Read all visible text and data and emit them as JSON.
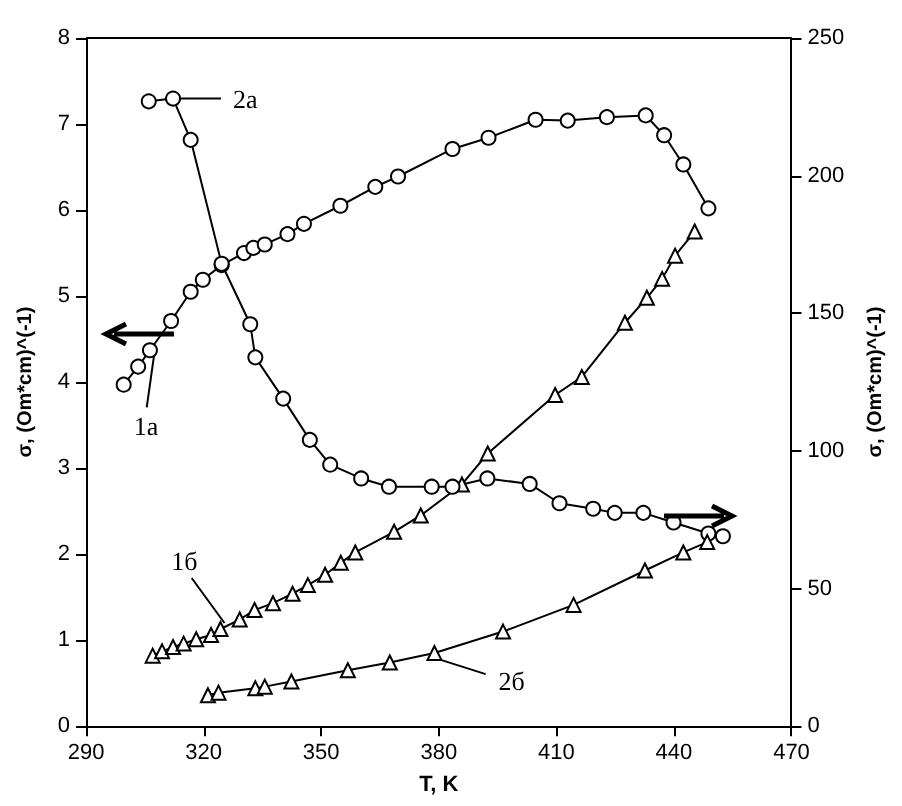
{
  "chart_data": {
    "type": "line",
    "xlabel": "T, K",
    "ylabel": "σ, (Om*cm)^(-1)",
    "y2label": "σ, (Om*cm)^(-1)",
    "xlim": [
      290,
      470
    ],
    "xticks": [
      290,
      320,
      350,
      380,
      410,
      440,
      470
    ],
    "ylim": [
      0,
      8
    ],
    "yticks": [
      0,
      1,
      2,
      3,
      4,
      5,
      6,
      7,
      8
    ],
    "y2lim": [
      0,
      250
    ],
    "y2ticks": [
      0,
      50,
      100,
      150,
      200,
      250
    ],
    "grid": false,
    "legend": "left",
    "line_style": "solid",
    "series": [
      {
        "name": "1а",
        "color": "#000000",
        "marker": "circle",
        "x": [
          299.6,
          303.3,
          306.3,
          311.7,
          316.7,
          319.8,
          324.6,
          330.3,
          332.7,
          335.6,
          341.4,
          345.6,
          354.9,
          363.8,
          369.6,
          383.5,
          392.7,
          404.7,
          412.9,
          422.9,
          432.8,
          437.5,
          442.4,
          448.8
        ],
        "values": [
          3.97,
          4.18,
          4.37,
          4.71,
          5.05,
          5.19,
          5.36,
          5.5,
          5.56,
          5.6,
          5.72,
          5.84,
          6.05,
          6.27,
          6.39,
          6.71,
          6.84,
          7.05,
          7.04,
          7.08,
          7.1,
          6.87,
          6.53,
          6.02
        ]
      },
      {
        "name": "1б",
        "color": "#000000",
        "marker": "triangle",
        "x": [
          307,
          309.4,
          312.2,
          314.9,
          318.1,
          321.9,
          324.3,
          329.2,
          333,
          337.7,
          342.7,
          346.6,
          351,
          355,
          358.7,
          368.6,
          375.4,
          385.9,
          392.5,
          409.7,
          416.5,
          427.5,
          433.1,
          437,
          440.3,
          445.3
        ],
        "values": [
          0.82,
          0.87,
          0.92,
          0.96,
          1.01,
          1.06,
          1.13,
          1.24,
          1.35,
          1.43,
          1.54,
          1.64,
          1.76,
          1.9,
          2.02,
          2.26,
          2.45,
          2.81,
          3.17,
          3.85,
          4.06,
          4.69,
          4.98,
          5.2,
          5.47,
          5.75
        ]
      },
      {
        "name": "2а",
        "color": "#000000",
        "marker": "circle",
        "axis": "y2",
        "x": [
          306,
          312.2,
          316.7,
          324.6,
          331.9,
          333.2,
          340.3,
          347.1,
          352.3,
          360.2,
          367.3,
          378.2,
          383.5,
          392.4,
          403.2,
          410.8,
          419.4,
          424.9,
          432.2,
          439.9,
          448.8,
          452.5
        ],
        "values": [
          227,
          228,
          213,
          168,
          146,
          134,
          119,
          104,
          95,
          90,
          87,
          87,
          87,
          90,
          88,
          81,
          79,
          77.5,
          77.5,
          74,
          70,
          69
        ]
      },
      {
        "name": "2б",
        "color": "#000000",
        "marker": "triangle",
        "x": [
          321.1,
          323.8,
          333.2,
          335.6,
          342.4,
          356.8,
          367.5,
          378.9,
          396.4,
          414.4,
          432.6,
          442.4,
          448.5
        ],
        "values": [
          0.36,
          0.39,
          0.44,
          0.46,
          0.52,
          0.65,
          0.74,
          0.85,
          1.1,
          1.41,
          1.81,
          2.02,
          2.14
        ]
      }
    ]
  }
}
